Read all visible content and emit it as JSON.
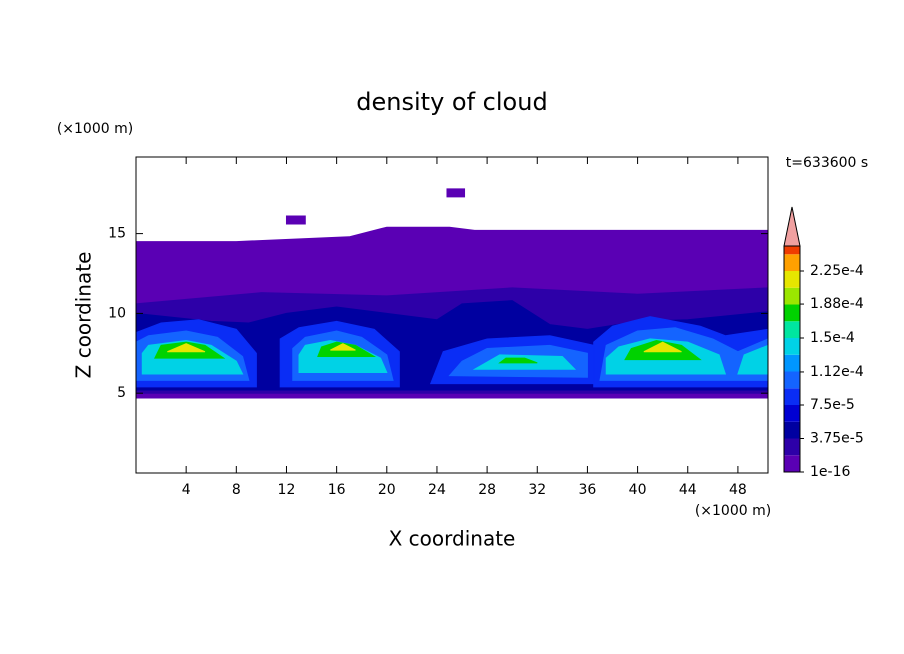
{
  "chart_data": {
    "type": "contour",
    "title": "density of cloud",
    "x_label": "X coordinate",
    "y_label": "Z coordinate",
    "x_unit": "(×1000 m)",
    "y_unit": "(×1000 m)",
    "annotation": "t=633600 s",
    "xlim": [
      0,
      50.4
    ],
    "ylim": [
      0,
      19.8
    ],
    "xticks": [
      4,
      8,
      12,
      16,
      20,
      24,
      28,
      32,
      36,
      40,
      44,
      48
    ],
    "yticks": [
      5,
      10,
      15
    ],
    "colorbar": {
      "range": [
        0,
        0.000253
      ],
      "levels": [
        1e-16,
        1.875e-05,
        3.75e-05,
        5.625e-05,
        7.5e-05,
        9.375e-05,
        0.0001125,
        0.00013125,
        0.00015,
        0.00016875,
        0.0001875,
        0.00020625,
        0.000225,
        0.00024375
      ],
      "colors": [
        "#5a00b4",
        "#2d00a8",
        "#0000a0",
        "#0000d2",
        "#0a2df5",
        "#1464ff",
        "#0096ff",
        "#00d2e6",
        "#00e6a0",
        "#00d200",
        "#9be600",
        "#e6e600",
        "#ffa000",
        "#f03c00"
      ],
      "extend_color": "#f0a0a0",
      "ticks": [
        {
          "value": 1e-16,
          "label": "1e-16"
        },
        {
          "value": 3.75e-05,
          "label": "3.75e-5"
        },
        {
          "value": 7.5e-05,
          "label": "7.5e-5"
        },
        {
          "value": 0.000112,
          "label": "1.12e-4"
        },
        {
          "value": 0.00015,
          "label": "1.5e-4"
        },
        {
          "value": 0.000188,
          "label": "1.88e-4"
        },
        {
          "value": 0.000225,
          "label": "2.25e-4"
        }
      ]
    },
    "contours": [
      {
        "level": 0,
        "points": [
          [
            0,
            4.7
          ],
          [
            50.4,
            4.7
          ],
          [
            50.4,
            15.2
          ],
          [
            27,
            15.2
          ],
          [
            25,
            15.4
          ],
          [
            20,
            15.4
          ],
          [
            17,
            14.8
          ],
          [
            8,
            14.5
          ],
          [
            0,
            14.5
          ]
        ]
      },
      {
        "level": 0,
        "points": [
          [
            24.8,
            17.3
          ],
          [
            26.2,
            17.3
          ],
          [
            26.2,
            17.8
          ],
          [
            24.8,
            17.8
          ]
        ]
      },
      {
        "level": 0,
        "points": [
          [
            12,
            15.6
          ],
          [
            13.5,
            15.6
          ],
          [
            13.5,
            16.1
          ],
          [
            12,
            16.1
          ]
        ]
      },
      {
        "level": 1,
        "points": [
          [
            0,
            5
          ],
          [
            50.4,
            5
          ],
          [
            50.4,
            11.6
          ],
          [
            40,
            11.2
          ],
          [
            30,
            11.6
          ],
          [
            20,
            11.1
          ],
          [
            10,
            11.3
          ],
          [
            0,
            10.6
          ]
        ]
      },
      {
        "level": 2,
        "points": [
          [
            0,
            5.2
          ],
          [
            50.4,
            5.2
          ],
          [
            50.4,
            10.1
          ],
          [
            44,
            9.6
          ],
          [
            40,
            9.5
          ],
          [
            36,
            9
          ],
          [
            33,
            9.3
          ],
          [
            30,
            10.8
          ],
          [
            26,
            10.6
          ],
          [
            24,
            9.6
          ],
          [
            20,
            10
          ],
          [
            16,
            10.4
          ],
          [
            12,
            10
          ],
          [
            9,
            9.4
          ],
          [
            6,
            9.5
          ],
          [
            0,
            10
          ]
        ]
      },
      {
        "level": 4,
        "points": [
          [
            0,
            5.4
          ],
          [
            9.6,
            5.4
          ],
          [
            9.6,
            7.5
          ],
          [
            8,
            9
          ],
          [
            5,
            9.6
          ],
          [
            2,
            9.4
          ],
          [
            0,
            8.8
          ]
        ]
      },
      {
        "level": 4,
        "points": [
          [
            11.5,
            5.4
          ],
          [
            21,
            5.4
          ],
          [
            21,
            7.6
          ],
          [
            19,
            9
          ],
          [
            16,
            9.5
          ],
          [
            13,
            9.1
          ],
          [
            11.5,
            8.4
          ]
        ]
      },
      {
        "level": 4,
        "points": [
          [
            23.5,
            5.6
          ],
          [
            36.5,
            5.6
          ],
          [
            36.5,
            8
          ],
          [
            33,
            8.6
          ],
          [
            28,
            8.4
          ],
          [
            24.5,
            7.6
          ]
        ]
      },
      {
        "level": 4,
        "points": [
          [
            36.5,
            5.4
          ],
          [
            50.4,
            5.4
          ],
          [
            50.4,
            9
          ],
          [
            47,
            8.6
          ],
          [
            45,
            9.2
          ],
          [
            41,
            9.8
          ],
          [
            38,
            9.2
          ],
          [
            36.5,
            8.2
          ]
        ]
      },
      {
        "level": 5,
        "points": [
          [
            0,
            5.8
          ],
          [
            9,
            5.8
          ],
          [
            8.5,
            7.3
          ],
          [
            6.5,
            8.5
          ],
          [
            4,
            8.9
          ],
          [
            1,
            8.6
          ],
          [
            0,
            8.2
          ]
        ]
      },
      {
        "level": 5,
        "points": [
          [
            12.5,
            5.8
          ],
          [
            20.5,
            5.8
          ],
          [
            20,
            7.4
          ],
          [
            18,
            8.5
          ],
          [
            16,
            8.9
          ],
          [
            13.5,
            8.5
          ],
          [
            12.5,
            7.8
          ]
        ]
      },
      {
        "level": 5,
        "points": [
          [
            25,
            6.1
          ],
          [
            36,
            6
          ],
          [
            36,
            7.5
          ],
          [
            33,
            8
          ],
          [
            28,
            7.8
          ],
          [
            26,
            7
          ]
        ]
      },
      {
        "level": 5,
        "points": [
          [
            37,
            5.8
          ],
          [
            50.4,
            5.8
          ],
          [
            50.4,
            8.4
          ],
          [
            48,
            7.6
          ],
          [
            46,
            8.4
          ],
          [
            43,
            9.1
          ],
          [
            40,
            8.9
          ],
          [
            37.5,
            8
          ]
        ]
      },
      {
        "level": 7,
        "points": [
          [
            0.5,
            6.2
          ],
          [
            8.5,
            6.2
          ],
          [
            8,
            7
          ],
          [
            6,
            8
          ],
          [
            4,
            8.3
          ],
          [
            1,
            8
          ],
          [
            0.5,
            7.5
          ]
        ]
      },
      {
        "level": 7,
        "points": [
          [
            13,
            6.3
          ],
          [
            20,
            6.3
          ],
          [
            19.5,
            7.2
          ],
          [
            17.5,
            8
          ],
          [
            15.5,
            8.3
          ],
          [
            13.5,
            8
          ],
          [
            13,
            7.4
          ]
        ]
      },
      {
        "level": 7,
        "points": [
          [
            27,
            6.5
          ],
          [
            35,
            6.5
          ],
          [
            34,
            7.3
          ],
          [
            29,
            7.4
          ]
        ]
      },
      {
        "level": 7,
        "points": [
          [
            37.5,
            6.2
          ],
          [
            47,
            6.2
          ],
          [
            46.5,
            7.4
          ],
          [
            44,
            8.2
          ],
          [
            41,
            8.4
          ],
          [
            38.5,
            7.9
          ],
          [
            37.5,
            7.2
          ]
        ]
      },
      {
        "level": 7,
        "points": [
          [
            48,
            6.2
          ],
          [
            50.4,
            6.2
          ],
          [
            50.4,
            8
          ],
          [
            48.5,
            7.4
          ]
        ]
      },
      {
        "level": 9,
        "points": [
          [
            1.5,
            7.2
          ],
          [
            7,
            7.2
          ],
          [
            5.5,
            8
          ],
          [
            4,
            8.2
          ],
          [
            2,
            8
          ]
        ]
      },
      {
        "level": 9,
        "points": [
          [
            14.5,
            7.3
          ],
          [
            19,
            7.3
          ],
          [
            17.5,
            8
          ],
          [
            16,
            8.2
          ],
          [
            14.8,
            7.9
          ]
        ]
      },
      {
        "level": 9,
        "points": [
          [
            29,
            6.9
          ],
          [
            32,
            6.9
          ],
          [
            31,
            7.2
          ],
          [
            29.5,
            7.2
          ]
        ]
      },
      {
        "level": 9,
        "points": [
          [
            39,
            7.1
          ],
          [
            45,
            7.1
          ],
          [
            43.5,
            8
          ],
          [
            41.5,
            8.3
          ],
          [
            39.5,
            7.8
          ]
        ]
      },
      {
        "level": 11,
        "points": [
          [
            2.5,
            7.6
          ],
          [
            5.5,
            7.6
          ],
          [
            4,
            8.1
          ]
        ]
      },
      {
        "level": 11,
        "points": [
          [
            15.5,
            7.7
          ],
          [
            17.5,
            7.7
          ],
          [
            16.5,
            8.1
          ]
        ]
      },
      {
        "level": 11,
        "points": [
          [
            40.5,
            7.6
          ],
          [
            43.5,
            7.6
          ],
          [
            42,
            8.2
          ]
        ]
      }
    ]
  }
}
